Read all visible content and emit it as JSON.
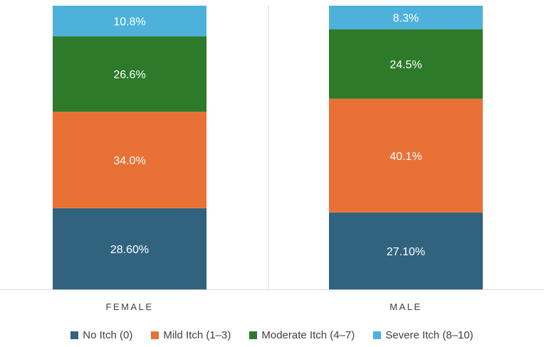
{
  "chart_data": {
    "type": "bar",
    "stacked": true,
    "percent_stacked": true,
    "categories": [
      "FEMALE",
      "MALE"
    ],
    "series": [
      {
        "name": "No Itch (0)",
        "color": "#31637f",
        "values": [
          28.6,
          27.1
        ],
        "labels": [
          "28.60%",
          "27.10%"
        ]
      },
      {
        "name": "Mild Itch (1–3)",
        "color": "#e97136",
        "values": [
          34.0,
          40.1
        ],
        "labels": [
          "34.0%",
          "40.1%"
        ]
      },
      {
        "name": "Moderate Itch (4–7)",
        "color": "#2d7a2a",
        "values": [
          26.6,
          24.5
        ],
        "labels": [
          "26.6%",
          "24.5%"
        ]
      },
      {
        "name": "Severe Itch (8–10)",
        "color": "#4eb1dc",
        "values": [
          10.8,
          8.3
        ],
        "labels": [
          "10.8%",
          "8.3%"
        ]
      }
    ],
    "ylim": [
      0,
      100
    ],
    "legend": "bottom"
  }
}
